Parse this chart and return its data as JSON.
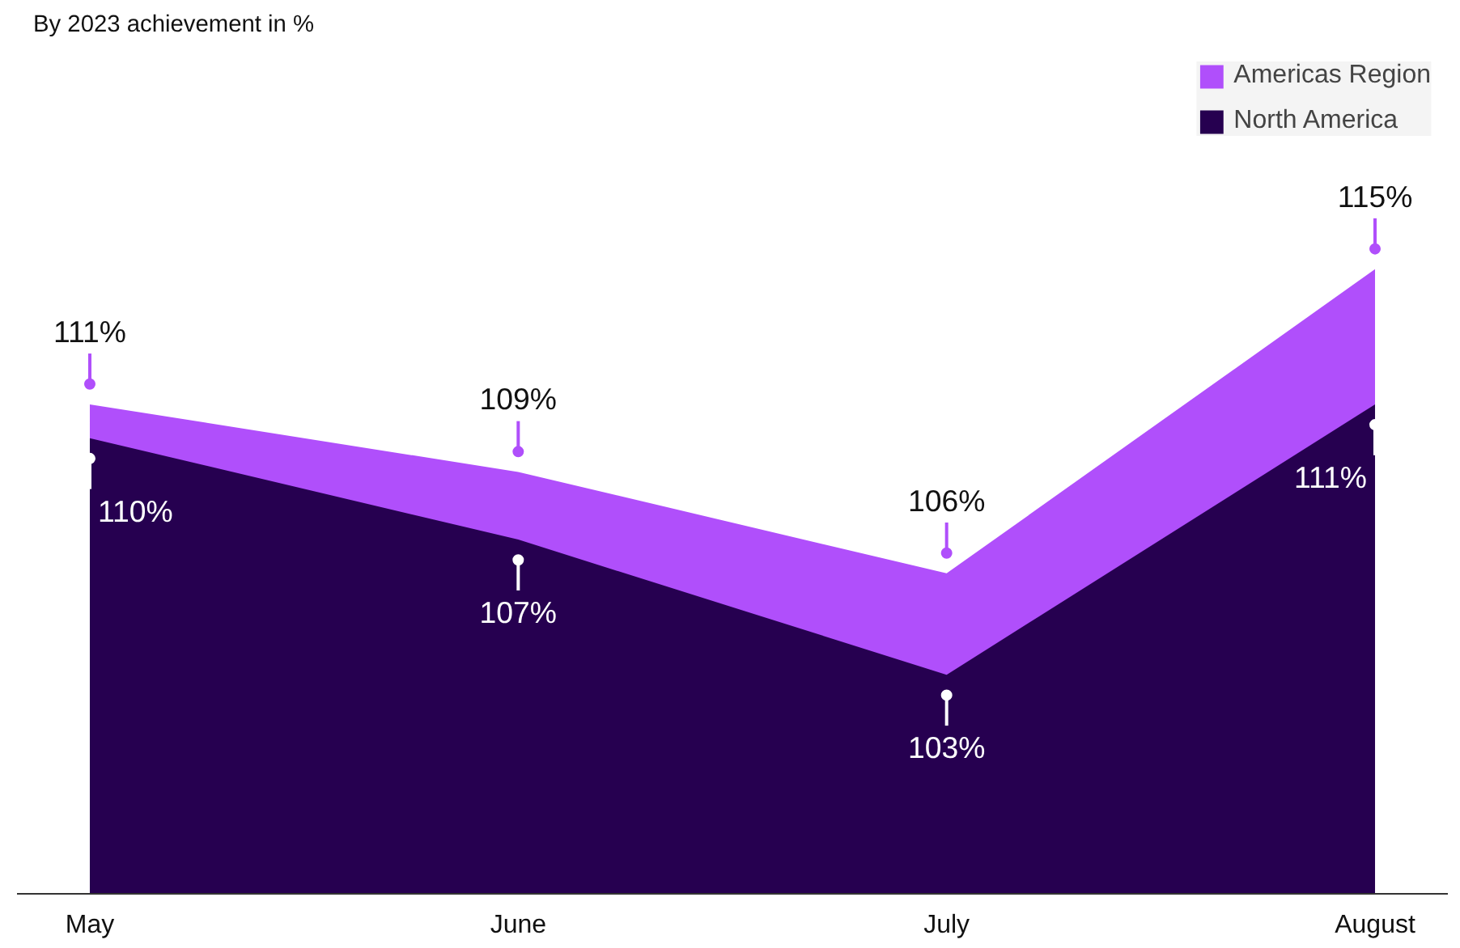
{
  "chart_data": {
    "type": "area",
    "title": "By 2023 achievement in %",
    "categories": [
      "May",
      "June",
      "July",
      "August"
    ],
    "series": [
      {
        "name": "Americas Region",
        "color": "#b04ffb",
        "values": [
          111,
          109,
          106,
          115
        ],
        "value_labels": [
          "111%",
          "109%",
          "106%",
          "115%"
        ]
      },
      {
        "name": "North America",
        "color": "#260050",
        "values": [
          110,
          107,
          103,
          111
        ],
        "value_labels": [
          "110%",
          "107%",
          "103%",
          "111%"
        ]
      }
    ],
    "legend": "top right",
    "grid": false
  }
}
